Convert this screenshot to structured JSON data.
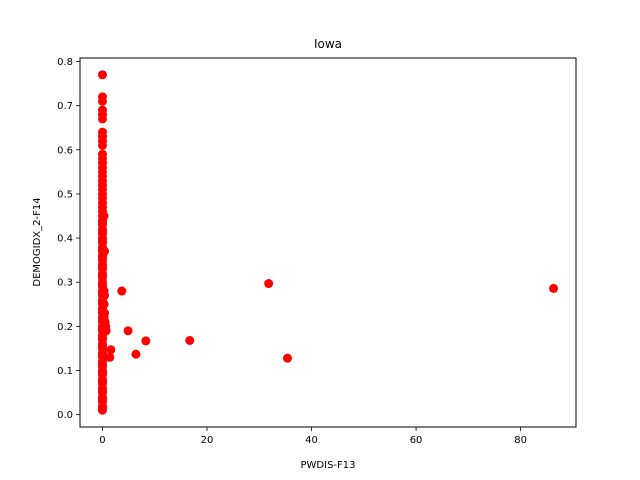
{
  "chart_data": {
    "type": "scatter",
    "title": "Iowa",
    "xlabel": "PWDIS-F13",
    "ylabel": "DEMOGIDX_2-F14",
    "xlim": [
      -4.3,
      90.6
    ],
    "ylim": [
      -0.028,
      0.808
    ],
    "xticks": [
      0,
      20,
      40,
      60,
      80
    ],
    "yticks": [
      0.0,
      0.1,
      0.2,
      0.3,
      0.4,
      0.5,
      0.6,
      0.7,
      0.8
    ],
    "xtick_labels": [
      "0",
      "20",
      "40",
      "60",
      "80"
    ],
    "ytick_labels": [
      "0.0",
      "0.1",
      "0.2",
      "0.3",
      "0.4",
      "0.5",
      "0.6",
      "0.7",
      "0.8"
    ],
    "marker_color": "#ff0000",
    "series": [
      {
        "name": "Iowa",
        "x": [
          0.0,
          0.0,
          0.0,
          0.0,
          0.0,
          0.0,
          0.0,
          0.0,
          0.0,
          0.0,
          0.0,
          0.0,
          0.0,
          0.0,
          0.0,
          0.0,
          0.0,
          0.0,
          0.0,
          0.0,
          0.0,
          0.0,
          0.0,
          0.0,
          0.0,
          0.0,
          0.0,
          0.0,
          0.0,
          0.0,
          0.0,
          0.0,
          0.0,
          0.0,
          0.0,
          0.0,
          0.0,
          0.0,
          0.0,
          0.0,
          0.0,
          0.0,
          0.0,
          0.0,
          0.0,
          0.0,
          0.0,
          0.0,
          0.0,
          0.0,
          0.0,
          0.0,
          0.0,
          0.0,
          0.0,
          0.0,
          0.0,
          0.0,
          0.0,
          0.0,
          0.0,
          0.0,
          0.0,
          0.0,
          0.0,
          0.0,
          0.0,
          0.0,
          0.0,
          0.0,
          0.0,
          0.0,
          0.0,
          0.0,
          0.0,
          0.0,
          0.0,
          0.0,
          0.0,
          0.0,
          0.0,
          0.0,
          0.0,
          0.0,
          0.0,
          0.0,
          0.0,
          0.0,
          0.0,
          0.0,
          0.0,
          0.3,
          0.3,
          0.3,
          0.3,
          0.3,
          0.4,
          0.4,
          0.4,
          0.5,
          0.5,
          0.6,
          0.7,
          1.4,
          1.6,
          3.7,
          4.9,
          6.4,
          8.3,
          16.7,
          31.8,
          35.4,
          86.3
        ],
        "y": [
          0.77,
          0.72,
          0.71,
          0.69,
          0.68,
          0.67,
          0.64,
          0.63,
          0.62,
          0.61,
          0.59,
          0.58,
          0.57,
          0.56,
          0.55,
          0.54,
          0.53,
          0.52,
          0.51,
          0.5,
          0.49,
          0.48,
          0.47,
          0.46,
          0.45,
          0.44,
          0.43,
          0.42,
          0.41,
          0.4,
          0.39,
          0.38,
          0.37,
          0.36,
          0.35,
          0.34,
          0.33,
          0.32,
          0.31,
          0.3,
          0.29,
          0.28,
          0.27,
          0.26,
          0.25,
          0.24,
          0.23,
          0.22,
          0.21,
          0.2,
          0.19,
          0.18,
          0.17,
          0.16,
          0.15,
          0.14,
          0.13,
          0.12,
          0.11,
          0.1,
          0.09,
          0.08,
          0.07,
          0.06,
          0.05,
          0.04,
          0.03,
          0.02,
          0.01,
          0.015,
          0.035,
          0.055,
          0.075,
          0.095,
          0.115,
          0.135,
          0.155,
          0.175,
          0.195,
          0.215,
          0.235,
          0.255,
          0.275,
          0.295,
          0.315,
          0.335,
          0.355,
          0.375,
          0.395,
          0.415,
          0.435,
          0.45,
          0.28,
          0.25,
          0.22,
          0.19,
          0.37,
          0.27,
          0.23,
          0.21,
          0.2,
          0.2,
          0.19,
          0.13,
          0.147,
          0.28,
          0.19,
          0.137,
          0.167,
          0.168,
          0.297,
          0.128,
          0.286
        ]
      }
    ]
  }
}
